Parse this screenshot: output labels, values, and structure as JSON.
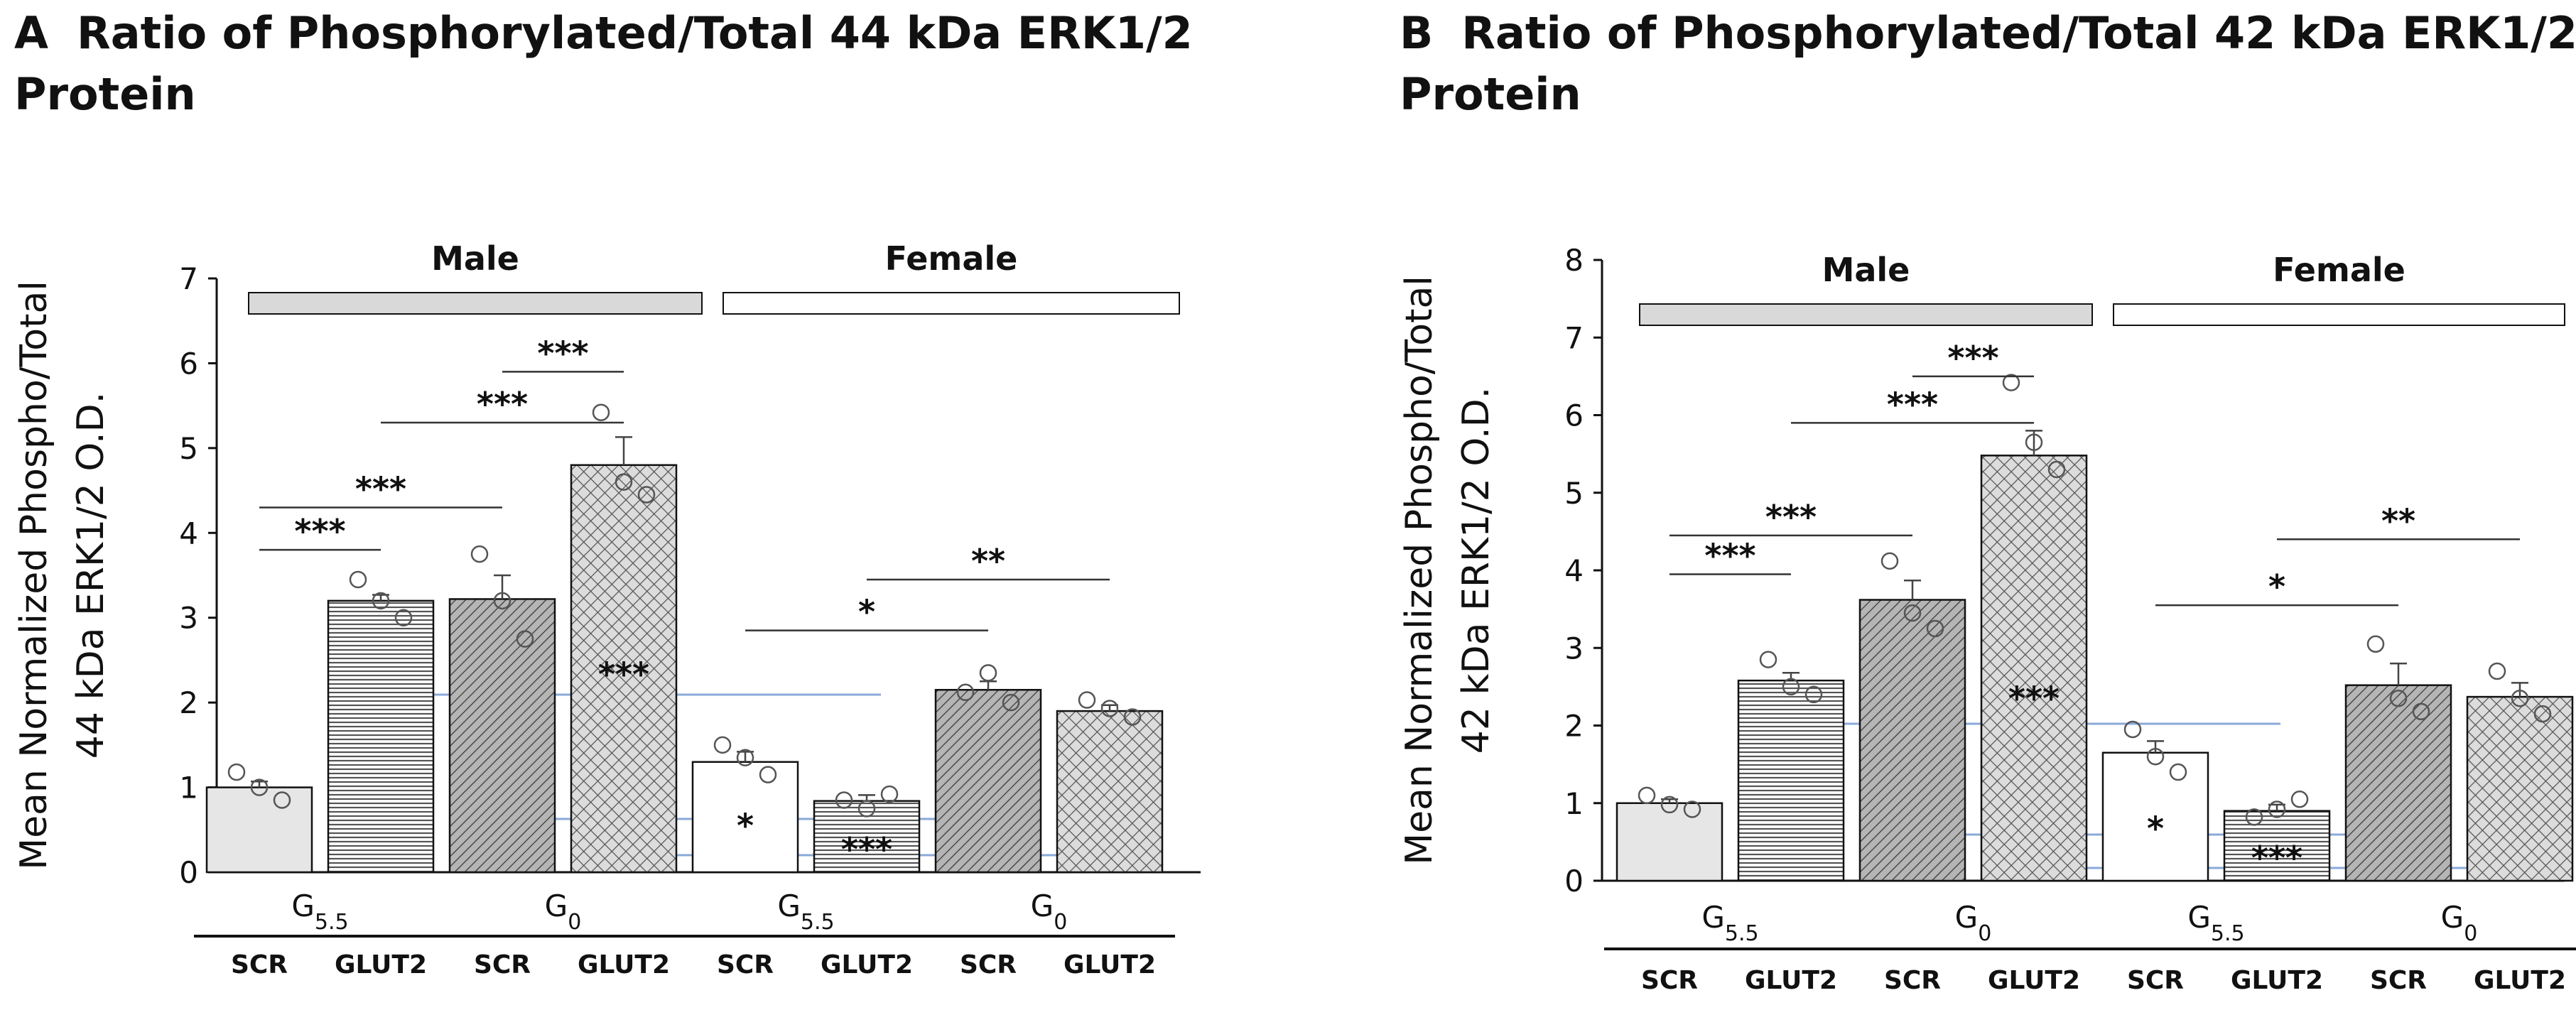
{
  "chart_data": [
    {
      "panel": "A",
      "type": "bar",
      "title": "Ratio of Phosphorylated/Total 44 kDa ERK1/2 Protein",
      "ylabel_line1": "Mean Normalized Phospho/Total",
      "ylabel_line2": "44 kDa ERK1/2 O.D.",
      "ylim": [
        0,
        7
      ],
      "yticks": [
        "0",
        "1",
        "2",
        "3",
        "4",
        "5",
        "6",
        "7"
      ],
      "sex_labels": [
        "Male",
        "Female"
      ],
      "condition_labels": [
        "G5.5",
        "G0",
        "G5.5",
        "G0"
      ],
      "categories": [
        "SCR",
        "GLUT2",
        "SCR",
        "GLUT2",
        "SCR",
        "GLUT2",
        "SCR",
        "GLUT2"
      ],
      "values": [
        1.0,
        3.2,
        3.22,
        4.8,
        1.3,
        0.84,
        2.15,
        1.9
      ],
      "errors": [
        0.07,
        0.07,
        0.28,
        0.33,
        0.12,
        0.07,
        0.1,
        0.07
      ],
      "points": [
        [
          1.18,
          1.0,
          0.85
        ],
        [
          3.45,
          3.2,
          3.0
        ],
        [
          3.75,
          3.2,
          2.75
        ],
        [
          5.42,
          4.6,
          4.45
        ],
        [
          1.5,
          1.35,
          1.15
        ],
        [
          0.85,
          0.75,
          0.92
        ],
        [
          2.12,
          2.35,
          2.0
        ],
        [
          2.03,
          1.93,
          1.83
        ]
      ],
      "significance": [
        {
          "from": 0,
          "to": 1,
          "y": 3.8,
          "label": "***"
        },
        {
          "from": 0,
          "to": 2,
          "y": 4.3,
          "label": "***"
        },
        {
          "from": 1,
          "to": 3,
          "y": 5.3,
          "label": "***"
        },
        {
          "from": 2,
          "to": 3,
          "y": 5.9,
          "label": "***"
        },
        {
          "from": 4,
          "to": 6,
          "y": 2.85,
          "label": "*"
        },
        {
          "from": 5,
          "to": 7,
          "y": 3.45,
          "label": "**"
        }
      ],
      "bar_annotations": [
        {
          "bar": 3,
          "label": "***"
        },
        {
          "bar": 4,
          "label": "*"
        },
        {
          "bar": 5,
          "label": "***"
        }
      ]
    },
    {
      "panel": "B",
      "type": "bar",
      "title": "Ratio of Phosphorylated/Total 42 kDa ERK1/2 Protein",
      "ylabel_line1": "Mean Normalized Phospho/Total",
      "ylabel_line2": "42 kDa ERK1/2 O.D.",
      "ylim": [
        0,
        8
      ],
      "yticks": [
        "0",
        "1",
        "2",
        "3",
        "4",
        "5",
        "6",
        "7",
        "8"
      ],
      "sex_labels": [
        "Male",
        "Female"
      ],
      "condition_labels": [
        "G5.5",
        "G0",
        "G5.5",
        "G0"
      ],
      "categories": [
        "SCR",
        "GLUT2",
        "SCR",
        "GLUT2",
        "SCR",
        "GLUT2",
        "SCR",
        "GLUT2"
      ],
      "values": [
        1.0,
        2.58,
        3.62,
        5.48,
        1.65,
        0.9,
        2.52,
        2.37
      ],
      "errors": [
        0.05,
        0.1,
        0.25,
        0.32,
        0.15,
        0.08,
        0.28,
        0.18
      ],
      "points": [
        [
          1.1,
          0.98,
          0.92
        ],
        [
          2.85,
          2.5,
          2.4
        ],
        [
          4.12,
          3.45,
          3.25
        ],
        [
          6.42,
          5.65,
          5.3
        ],
        [
          1.95,
          1.6,
          1.4
        ],
        [
          0.82,
          0.92,
          1.05
        ],
        [
          3.05,
          2.35,
          2.18
        ],
        [
          2.7,
          2.35,
          2.15
        ]
      ],
      "significance": [
        {
          "from": 0,
          "to": 1,
          "y": 3.95,
          "label": "***"
        },
        {
          "from": 0,
          "to": 2,
          "y": 4.45,
          "label": "***"
        },
        {
          "from": 1,
          "to": 3,
          "y": 5.9,
          "label": "***"
        },
        {
          "from": 2,
          "to": 3,
          "y": 6.5,
          "label": "***"
        },
        {
          "from": 4,
          "to": 6,
          "y": 3.55,
          "label": "*"
        },
        {
          "from": 5,
          "to": 7,
          "y": 4.4,
          "label": "**"
        }
      ],
      "bar_annotations": [
        {
          "bar": 3,
          "label": "***"
        },
        {
          "bar": 4,
          "label": "*"
        },
        {
          "bar": 5,
          "label": "***"
        }
      ]
    }
  ],
  "colors": {
    "axis": "#111111",
    "male_band": "#d9d9d9",
    "female_band": "#ffffff",
    "blue_guides": "#8aa9d8"
  }
}
